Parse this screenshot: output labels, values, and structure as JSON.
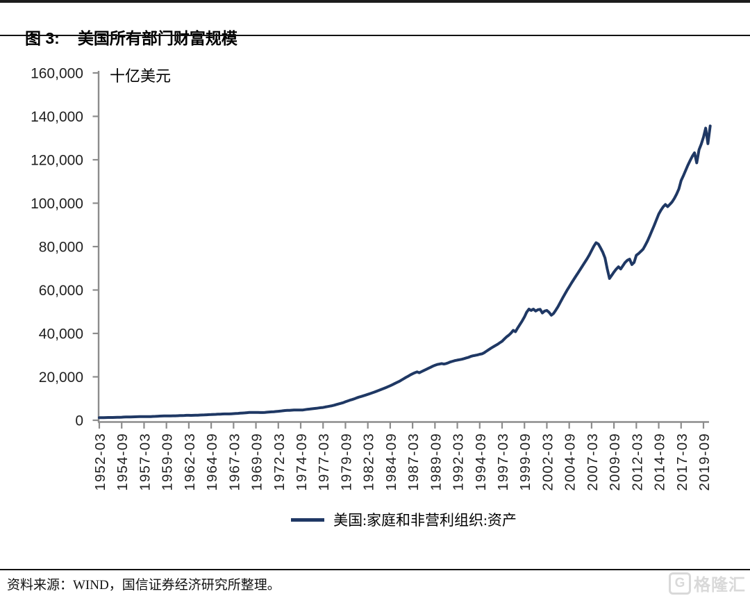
{
  "header": {
    "figure_label": "图 3:",
    "title": "美国所有部门财富规模"
  },
  "colors": {
    "line": "#1f3864",
    "axis": "#8c8c8c",
    "tick_text": "#1f1f1f",
    "title_bar": "#1c1c1c",
    "logo": "#d9d9d9"
  },
  "chart_data": {
    "type": "line",
    "title": "美国所有部门财富规模",
    "unit_label": "十亿美元",
    "xlabel": "",
    "ylabel": "十亿美元",
    "ylim": [
      0,
      160000
    ],
    "grid": false,
    "legend_position": "bottom",
    "x_unit": "quarter",
    "x_first": "1952-03",
    "x_last": "2020-06",
    "x_tick_step": 10,
    "x_tick_labels": [
      "1952-03",
      "1954-09",
      "1957-03",
      "1959-09",
      "1962-03",
      "1964-09",
      "1967-03",
      "1969-09",
      "1972-03",
      "1974-09",
      "1977-03",
      "1979-09",
      "1982-03",
      "1984-09",
      "1987-03",
      "1989-09",
      "1992-03",
      "1994-09",
      "1997-03",
      "1999-09",
      "2002-03",
      "2004-09",
      "2007-03",
      "2009-09",
      "2012-03",
      "2014-09",
      "2017-03",
      "2019-09"
    ],
    "y_tick_values": [
      0,
      20000,
      40000,
      60000,
      80000,
      100000,
      120000,
      140000,
      160000
    ],
    "y_tick_labels": [
      "0",
      "20,000",
      "40,000",
      "60,000",
      "80,000",
      "100,000",
      "120,000",
      "140,000",
      "160,000"
    ],
    "series": [
      {
        "name": "美国:家庭和非营利组织:资产",
        "color": "#1f3864",
        "values": [
          1180,
          1210,
          1230,
          1260,
          1270,
          1280,
          1280,
          1310,
          1340,
          1370,
          1410,
          1460,
          1500,
          1530,
          1550,
          1580,
          1600,
          1630,
          1650,
          1680,
          1690,
          1710,
          1700,
          1710,
          1750,
          1800,
          1860,
          1920,
          1950,
          1980,
          1990,
          2010,
          2020,
          2040,
          2050,
          2090,
          2140,
          2180,
          2220,
          2280,
          2260,
          2230,
          2260,
          2310,
          2350,
          2390,
          2430,
          2480,
          2540,
          2590,
          2640,
          2680,
          2730,
          2770,
          2820,
          2890,
          2910,
          2920,
          2910,
          2970,
          3040,
          3110,
          3180,
          3250,
          3320,
          3400,
          3480,
          3580,
          3580,
          3570,
          3600,
          3580,
          3560,
          3540,
          3630,
          3720,
          3800,
          3880,
          3930,
          4030,
          4130,
          4230,
          4340,
          4490,
          4540,
          4570,
          4650,
          4700,
          4710,
          4720,
          4690,
          4750,
          4900,
          5050,
          5150,
          5280,
          5400,
          5500,
          5650,
          5800,
          5900,
          6100,
          6300,
          6500,
          6700,
          6950,
          7250,
          7550,
          7800,
          8100,
          8500,
          8900,
          9250,
          9550,
          9900,
          10300,
          10650,
          10950,
          11250,
          11600,
          11950,
          12300,
          12650,
          13000,
          13400,
          13800,
          14200,
          14600,
          15000,
          15450,
          15900,
          16400,
          16900,
          17400,
          17900,
          18500,
          19100,
          19700,
          20300,
          20900,
          21400,
          21900,
          22300,
          21900,
          22400,
          22900,
          23400,
          23900,
          24400,
          24900,
          25300,
          25700,
          25900,
          26100,
          25900,
          26100,
          26500,
          26900,
          27200,
          27500,
          27700,
          27900,
          28100,
          28400,
          28700,
          29000,
          29400,
          29700,
          29900,
          30100,
          30400,
          30600,
          31100,
          31800,
          32500,
          33200,
          33800,
          34400,
          35000,
          35700,
          36400,
          37400,
          38400,
          39200,
          40200,
          41400,
          40800,
          42600,
          44200,
          45800,
          47600,
          49800,
          51200,
          50600,
          51200,
          50300,
          50900,
          51100,
          49400,
          50300,
          50600,
          49700,
          48400,
          49200,
          50700,
          52400,
          54300,
          56200,
          58000,
          59800,
          61500,
          63200,
          64800,
          66400,
          68000,
          69600,
          71200,
          72800,
          74400,
          76200,
          78200,
          80200,
          81800,
          81200,
          79400,
          77400,
          74800,
          69800,
          65300,
          66800,
          68300,
          69600,
          70700,
          69700,
          71200,
          72700,
          73700,
          74200,
          71700,
          72700,
          76000,
          76800,
          77800,
          78800,
          80600,
          82600,
          85000,
          87400,
          89800,
          92400,
          95000,
          96800,
          98300,
          99400,
          98400,
          99500,
          100600,
          102200,
          104200,
          106600,
          110400,
          112600,
          115000,
          117400,
          119600,
          121600,
          123200,
          118600,
          124600,
          127200,
          130400,
          134600,
          127400,
          135600
        ]
      }
    ]
  },
  "legend": {
    "series_label": "美国:家庭和非营利组织:资产"
  },
  "footer": {
    "source": "资料来源：WIND，国信证券经济研究所整理。",
    "logo_icon": "G",
    "logo_text": "格隆汇"
  }
}
